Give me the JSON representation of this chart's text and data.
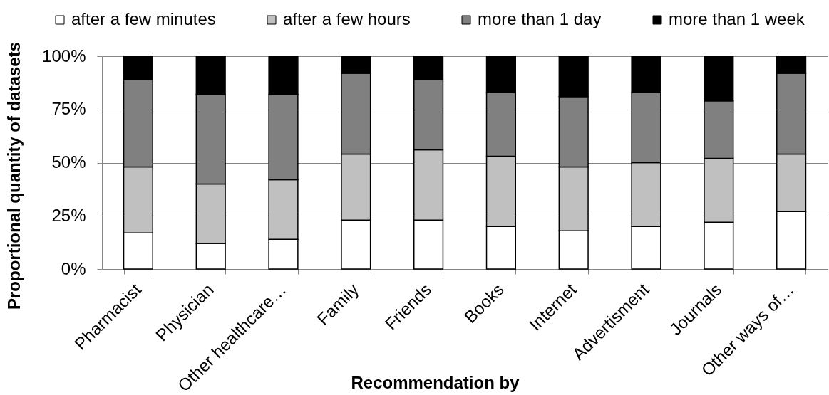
{
  "chart_data": {
    "type": "bar",
    "stacked": true,
    "xlabel": "Recommendation by",
    "ylabel": "Proportional quantity of datasets",
    "categories": [
      "Pharmacist",
      "Physician",
      "Other healthcare…",
      "Family",
      "Friends",
      "Books",
      "Internet",
      "Advertisment",
      "Journals",
      "Other ways of…"
    ],
    "series": [
      {
        "name": "after a few minutes",
        "color": "#ffffff",
        "values": [
          17,
          12,
          14,
          23,
          23,
          20,
          18,
          20,
          22,
          27
        ]
      },
      {
        "name": "after a few hours",
        "color": "#c0c0c0",
        "values": [
          31,
          28,
          28,
          31,
          33,
          33,
          30,
          30,
          30,
          27
        ]
      },
      {
        "name": "more than 1 day",
        "color": "#808080",
        "values": [
          41,
          42,
          40,
          38,
          33,
          30,
          33,
          33,
          27,
          38
        ]
      },
      {
        "name": "more than 1 week",
        "color": "#000000",
        "values": [
          11,
          18,
          18,
          8,
          11,
          17,
          19,
          17,
          21,
          8
        ]
      }
    ],
    "ylim": [
      0,
      100
    ],
    "yticks": [
      {
        "value": 0,
        "label": "0%"
      },
      {
        "value": 25,
        "label": "25%"
      },
      {
        "value": 50,
        "label": "50%"
      },
      {
        "value": 75,
        "label": "75%"
      },
      {
        "value": 100,
        "label": "100%"
      }
    ],
    "grid": "y",
    "legend": "top"
  }
}
